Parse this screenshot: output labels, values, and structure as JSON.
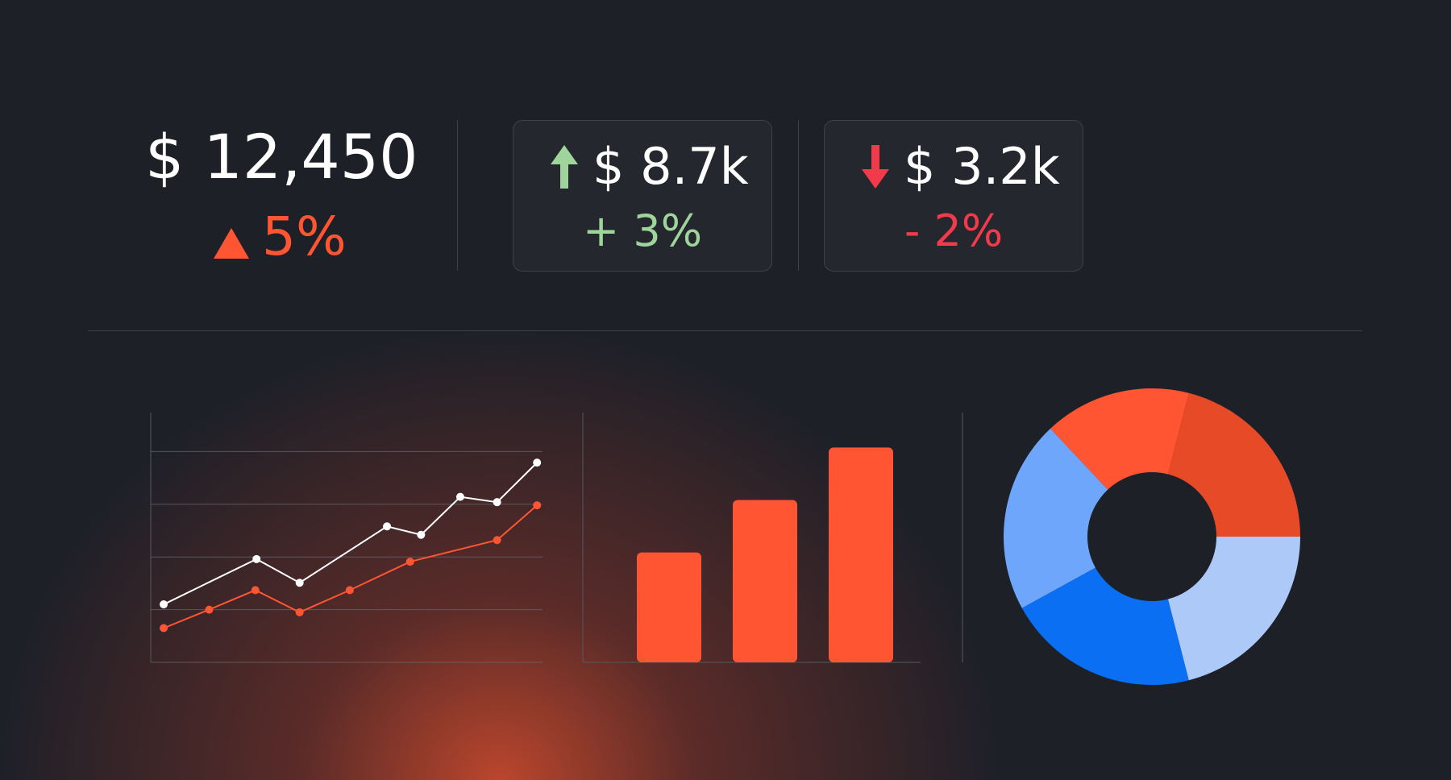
{
  "kpis": [
    {
      "value": "$ 12,450",
      "change": "5%"
    },
    {
      "value": "$ 8.7k",
      "change": "+ 3%"
    },
    {
      "value": "$ 3.2k",
      "change": "- 2%"
    }
  ],
  "chart_data": [
    {
      "type": "line",
      "xlim": [
        0,
        10
      ],
      "ylim": [
        0,
        4.74
      ],
      "yticks": [
        0,
        1,
        2,
        3,
        4
      ],
      "grid": true,
      "series": [
        {
          "color": "#ffffff",
          "x": [
            0.33,
            2.7,
            3.8,
            6.03,
            6.9,
            7.9,
            8.84,
            9.86
          ],
          "values": [
            1.1,
            1.96,
            1.51,
            2.58,
            2.42,
            3.14,
            3.04,
            3.79
          ]
        },
        {
          "color": "#ff5533",
          "x": [
            0.33,
            1.49,
            2.67,
            3.8,
            5.08,
            6.62,
            8.84,
            9.86
          ],
          "values": [
            0.65,
            1.0,
            1.37,
            0.95,
            1.37,
            1.91,
            2.32,
            2.98
          ]
        }
      ]
    },
    {
      "type": "bar",
      "categories": [
        null,
        null,
        null
      ],
      "values": [
        44,
        65,
        86
      ],
      "color": "#ff5533",
      "ylim": [
        0,
        100
      ]
    },
    {
      "type": "pie",
      "values": [
        21,
        21,
        21,
        16,
        21
      ],
      "colors": [
        "#adc9f8",
        "#0a6ff2",
        "#6ea6fb",
        "#ff5533",
        "#e64a27"
      ],
      "hole": 0.435
    }
  ]
}
